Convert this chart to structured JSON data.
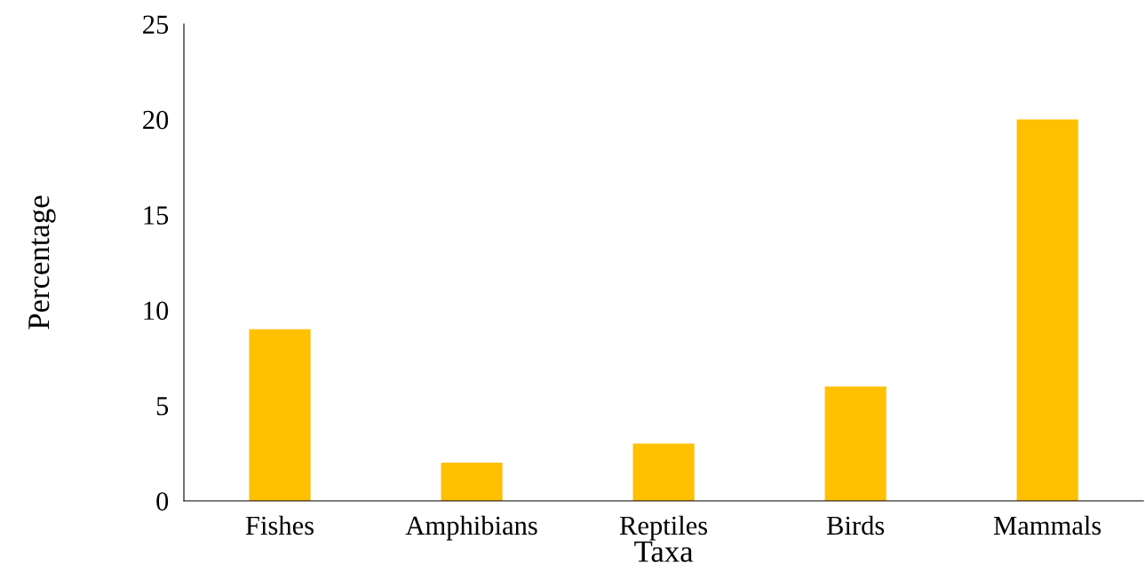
{
  "chart_data": {
    "type": "bar",
    "xlabel": "Taxa",
    "ylabel": "Percentage",
    "categories": [
      "Fishes",
      "Amphibians",
      "Reptiles",
      "Birds",
      "Mammals"
    ],
    "values": [
      9,
      2,
      3,
      6,
      20
    ],
    "color": "#ffc000",
    "ylim": [
      0,
      25
    ],
    "yticks": [
      0,
      5,
      10,
      15,
      20,
      25
    ],
    "grid": false,
    "legend": false
  }
}
